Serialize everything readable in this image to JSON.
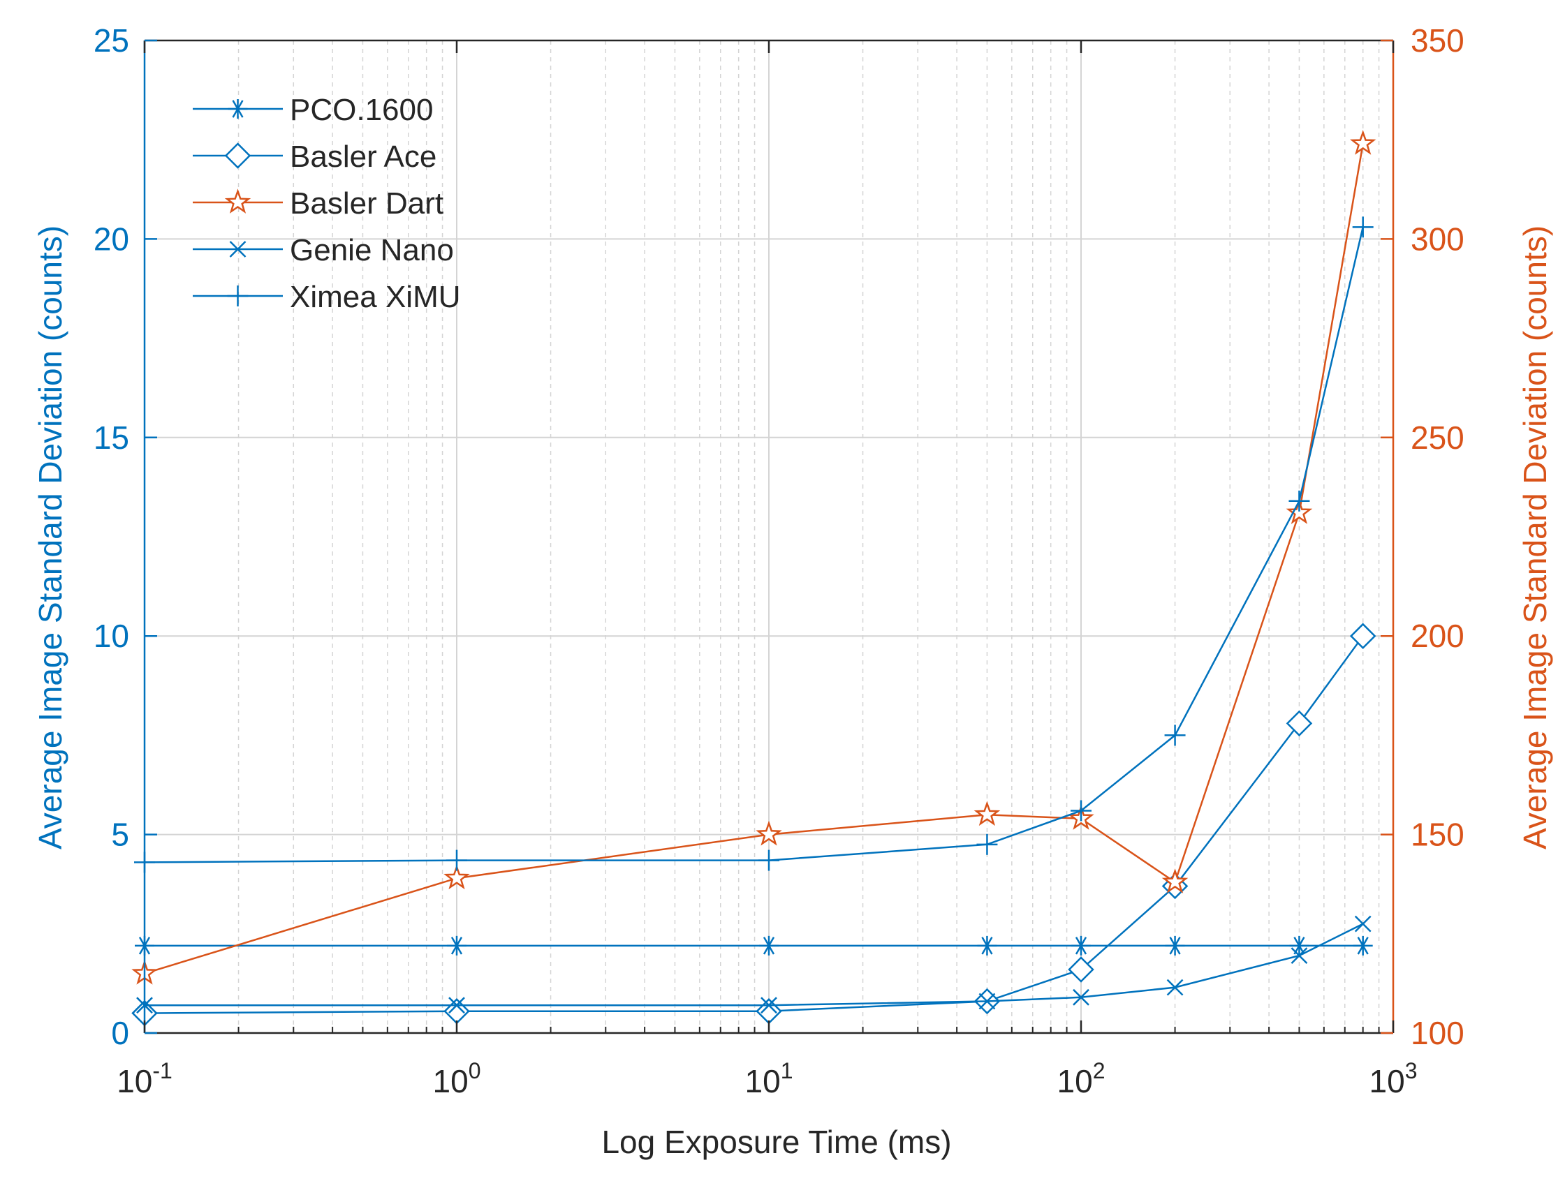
{
  "colors": {
    "left_axis": "#0072BD",
    "right_axis": "#D95319",
    "grid": "#d4d4d4",
    "axis_box": "#262626"
  },
  "chart_data": {
    "type": "line",
    "title": "",
    "xlabel": "Log Exposure Time (ms)",
    "ylabel_left": "Average Image Standard Deviation (counts)",
    "ylabel_right": "Average Image Standard Deviation (counts)",
    "x_scale": "log",
    "xlim": [
      0.1,
      1000
    ],
    "ylim_left": [
      0,
      25
    ],
    "ylim_right": [
      100,
      350
    ],
    "x_ticks": [
      {
        "value": 0.1,
        "base": "10",
        "exp": "-1"
      },
      {
        "value": 1,
        "base": "10",
        "exp": "0"
      },
      {
        "value": 10,
        "base": "10",
        "exp": "1"
      },
      {
        "value": 100,
        "base": "10",
        "exp": "2"
      },
      {
        "value": 1000,
        "base": "10",
        "exp": "3"
      }
    ],
    "y_ticks_left": [
      "0",
      "5",
      "10",
      "15",
      "20",
      "25"
    ],
    "y_ticks_right": [
      "100",
      "150",
      "200",
      "250",
      "300",
      "350"
    ],
    "grid": true,
    "legend_position": "top-left",
    "series": [
      {
        "name": "PCO.1600",
        "axis": "left",
        "marker": "asterisk",
        "x": [
          0.1,
          1,
          10,
          50,
          100,
          200,
          500,
          800
        ],
        "y": [
          2.2,
          2.2,
          2.2,
          2.2,
          2.2,
          2.2,
          2.2,
          2.2
        ]
      },
      {
        "name": "Basler Ace",
        "axis": "left",
        "marker": "diamond",
        "x": [
          0.1,
          1,
          10,
          50,
          100,
          200,
          500,
          800
        ],
        "y": [
          0.5,
          0.55,
          0.55,
          0.8,
          1.6,
          3.7,
          7.8,
          10.0
        ]
      },
      {
        "name": "Basler Dart",
        "axis": "right",
        "marker": "pentagram",
        "x": [
          0.1,
          1,
          10,
          50,
          100,
          200,
          500,
          800
        ],
        "y": [
          115,
          139,
          150,
          155,
          154,
          138,
          231,
          324
        ]
      },
      {
        "name": "Genie Nano",
        "axis": "left",
        "marker": "x",
        "x": [
          0.1,
          1,
          10,
          50,
          100,
          200,
          500,
          800
        ],
        "y": [
          0.7,
          0.7,
          0.7,
          0.8,
          0.9,
          1.15,
          1.95,
          2.75
        ]
      },
      {
        "name": "Ximea XiMU",
        "axis": "left",
        "marker": "plus",
        "x": [
          0.1,
          1,
          10,
          50,
          100,
          200,
          500,
          800
        ],
        "y": [
          4.3,
          4.35,
          4.35,
          4.75,
          5.6,
          7.5,
          13.4,
          20.3
        ]
      }
    ]
  }
}
